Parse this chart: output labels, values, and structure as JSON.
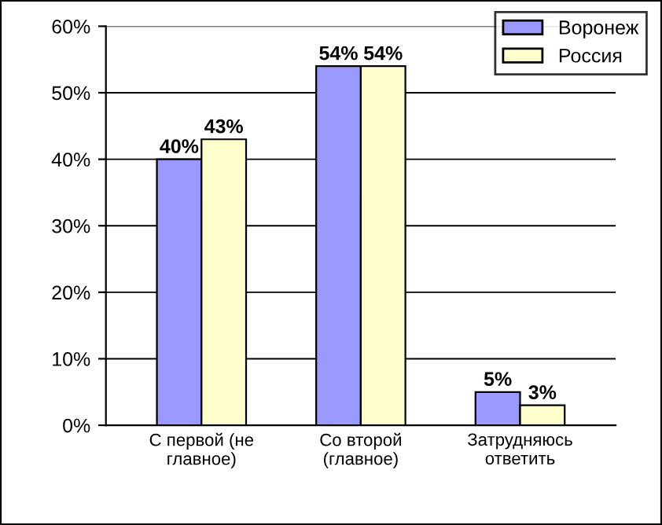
{
  "chart_data": {
    "type": "bar",
    "categories": [
      "С первой (не\nглавное)",
      "Со второй\n(главное)",
      "Затрудняюсь\nответить"
    ],
    "series": [
      {
        "name": "Воронеж",
        "color": "#9999ff",
        "values": [
          40,
          54,
          5
        ],
        "value_labels": [
          "40%",
          "54%",
          "5%"
        ]
      },
      {
        "name": "Россия",
        "color": "#ffffcc",
        "values": [
          43,
          54,
          3
        ],
        "value_labels": [
          "43%",
          "54%",
          "3%"
        ]
      }
    ],
    "ylim": [
      0,
      60
    ],
    "yticks": [
      {
        "value": 0,
        "label": "0%"
      },
      {
        "value": 10,
        "label": "10%"
      },
      {
        "value": 20,
        "label": "20%"
      },
      {
        "value": 30,
        "label": "30%"
      },
      {
        "value": 40,
        "label": "40%"
      },
      {
        "value": 50,
        "label": "50%"
      },
      {
        "value": 60,
        "label": "60%"
      }
    ],
    "grid": "y",
    "legend": "top right"
  }
}
